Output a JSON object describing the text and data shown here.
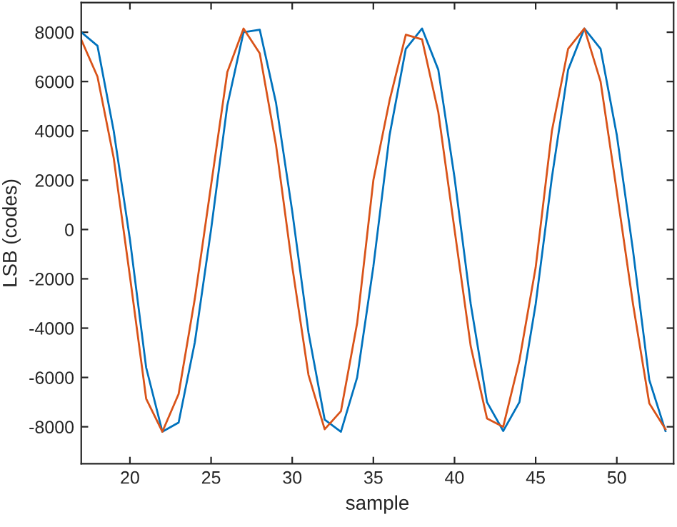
{
  "chart_data": {
    "type": "line",
    "xlabel": "sample",
    "ylabel": "LSB (codes)",
    "x": [
      17,
      18,
      19,
      20,
      21,
      22,
      23,
      24,
      25,
      26,
      27,
      28,
      29,
      30,
      31,
      32,
      33,
      34,
      35,
      36,
      37,
      38,
      39,
      40,
      41,
      42,
      43,
      44,
      45,
      46,
      47,
      48,
      49,
      50,
      51,
      52,
      53
    ],
    "series": [
      {
        "color": "#0072bd",
        "values": [
          8000,
          7450,
          4000,
          -400,
          -5600,
          -8200,
          -7830,
          -4570,
          0,
          5030,
          8000,
          8100,
          5140,
          740,
          -4170,
          -7710,
          -8200,
          -6000,
          -1500,
          3830,
          7330,
          8150,
          6480,
          2110,
          -3030,
          -7000,
          -8170,
          -7000,
          -3030,
          2110,
          6480,
          8150,
          7330,
          3830,
          -860,
          -6100,
          -8170
        ]
      },
      {
        "color": "#d95319",
        "values": [
          7700,
          6200,
          2900,
          -1900,
          -6860,
          -8200,
          -6670,
          -2800,
          1800,
          6380,
          8150,
          7140,
          3430,
          -1500,
          -5890,
          -8100,
          -7370,
          -3800,
          2000,
          5240,
          7900,
          7710,
          4760,
          0,
          -4740,
          -7660,
          -8000,
          -5300,
          -1540,
          4000,
          7330,
          8150,
          6000,
          1540,
          -3030,
          -7050,
          -8100
        ]
      }
    ],
    "xlim": [
      17,
      53.5
    ],
    "ylim": [
      -9500,
      9200
    ],
    "xticks": [
      20,
      25,
      30,
      35,
      40,
      45,
      50
    ],
    "yticks": [
      -8000,
      -6000,
      -4000,
      -2000,
      0,
      2000,
      4000,
      6000,
      8000
    ],
    "grid": false,
    "legend": false,
    "marker": "none",
    "line_style": "solid"
  }
}
